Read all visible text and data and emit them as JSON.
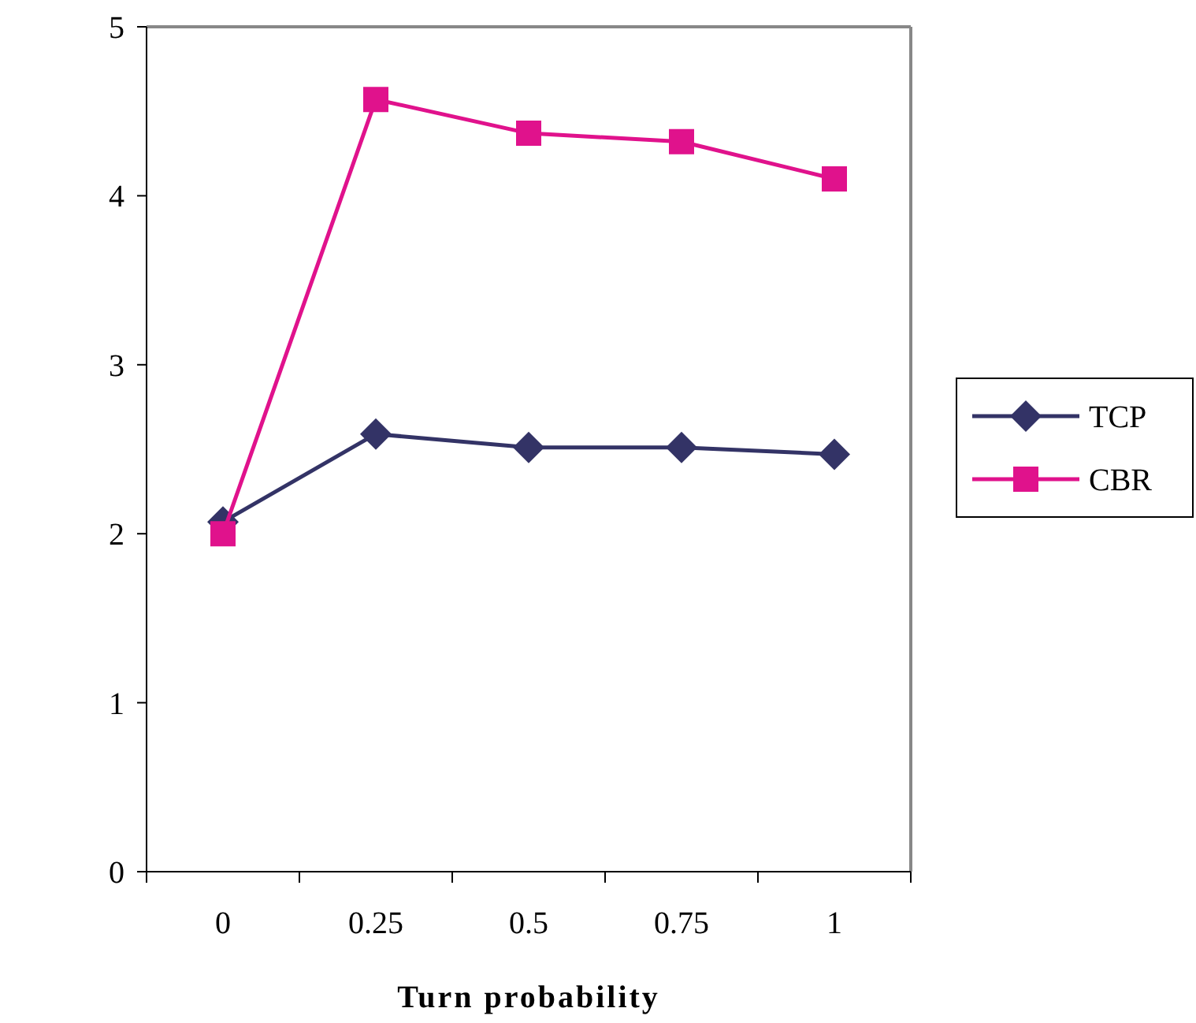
{
  "chart_data": {
    "type": "line",
    "xlabel": "Turn probability",
    "categories": [
      "0",
      "0.25",
      "0.5",
      "0.75",
      "1"
    ],
    "series": [
      {
        "name": "TCP",
        "color": "#333366",
        "marker": "diamond",
        "values": [
          2.07,
          2.59,
          2.51,
          2.51,
          2.47
        ]
      },
      {
        "name": "CBR",
        "color": "#e0128c",
        "marker": "square",
        "values": [
          2.0,
          4.57,
          4.37,
          4.32,
          4.1
        ]
      }
    ],
    "ylim": [
      0,
      5
    ],
    "yticks": [
      0,
      1,
      2,
      3,
      4,
      5
    ],
    "grid": false,
    "legend": "right",
    "line_style": "solid"
  }
}
